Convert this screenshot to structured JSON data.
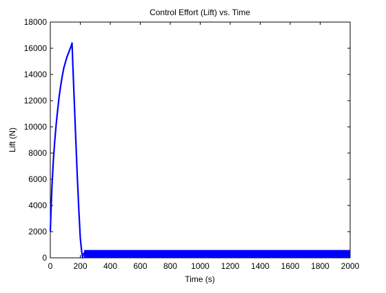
{
  "chart_data": {
    "type": "line",
    "title": "Control Effort (Lift) vs. Time",
    "xlabel": "Time (s)",
    "ylabel": "Lift (N)",
    "xlim": [
      0,
      2000
    ],
    "ylim": [
      0,
      18000
    ],
    "xticks": [
      0,
      200,
      400,
      600,
      800,
      1000,
      1200,
      1400,
      1600,
      1800,
      2000
    ],
    "yticks": [
      0,
      2000,
      4000,
      6000,
      8000,
      10000,
      12000,
      14000,
      16000,
      18000
    ],
    "grid": false,
    "line_color": "#0000ff",
    "series": [
      {
        "x": [
          0,
          5,
          10,
          20,
          30,
          40,
          50,
          60,
          70,
          80,
          90,
          100,
          110,
          120,
          130,
          140,
          145,
          150,
          160,
          170,
          180,
          190,
          200,
          210,
          215,
          220,
          225
        ],
        "y": [
          2000,
          3700,
          5200,
          7400,
          9000,
          10300,
          11400,
          12400,
          13200,
          13900,
          14500,
          14900,
          15300,
          15600,
          15900,
          16200,
          16400,
          14800,
          11900,
          9000,
          6200,
          3700,
          1500,
          400,
          0,
          250,
          400
        ]
      }
    ],
    "oscillation_band": {
      "x": [
        225,
        2000
      ],
      "y": [
        0,
        600
      ]
    }
  }
}
